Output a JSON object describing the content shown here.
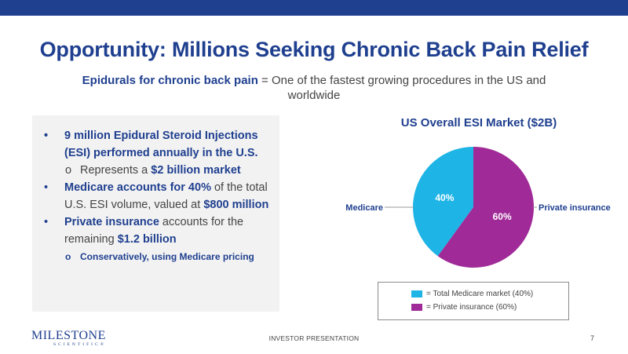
{
  "slide": {
    "title": "Opportunity: Millions Seeking Chronic Back Pain Relief",
    "subtitle_bold": "Epidurals for chronic back pain",
    "subtitle_rest": " = One of the fastest growing procedures in the US and worldwide",
    "bullets": {
      "b1": "9 million Epidural Steroid Injections (ESI) performed annually in the U.S.",
      "b1_sub_pre": "Represents a ",
      "b1_sub_hl": "$2 billion market",
      "b2_hl": "Medicare accounts for 40%",
      "b2_rest": " of the total U.S. ESI volume, valued at ",
      "b2_val": "$800 million",
      "b3_hl": "Private insurance",
      "b3_rest": " accounts for the remaining ",
      "b3_val": "$1.2 billion",
      "b3_sub": "Conservatively, using Medicare pricing",
      "bullet_glyph": "•",
      "sub_glyph": "o"
    },
    "footer": "INVESTOR PRESENTATION",
    "page_number": "7",
    "logo": {
      "main": "MILESTONE",
      "sub": "SCIENTIFIC®"
    }
  },
  "chart_data": {
    "type": "pie",
    "title": "US Overall ESI Market ($2B)",
    "slices": [
      {
        "label": "Medicare",
        "value": 40,
        "display": "40%",
        "color": "#1fb4e6"
      },
      {
        "label": "Private insurance",
        "value": 60,
        "display": "60%",
        "color": "#a02a97"
      }
    ],
    "legend": [
      {
        "text": "= Total Medicare market (40%)",
        "color": "#1fb4e6"
      },
      {
        "text": "= Private insurance (60%)",
        "color": "#a02a97"
      }
    ]
  }
}
